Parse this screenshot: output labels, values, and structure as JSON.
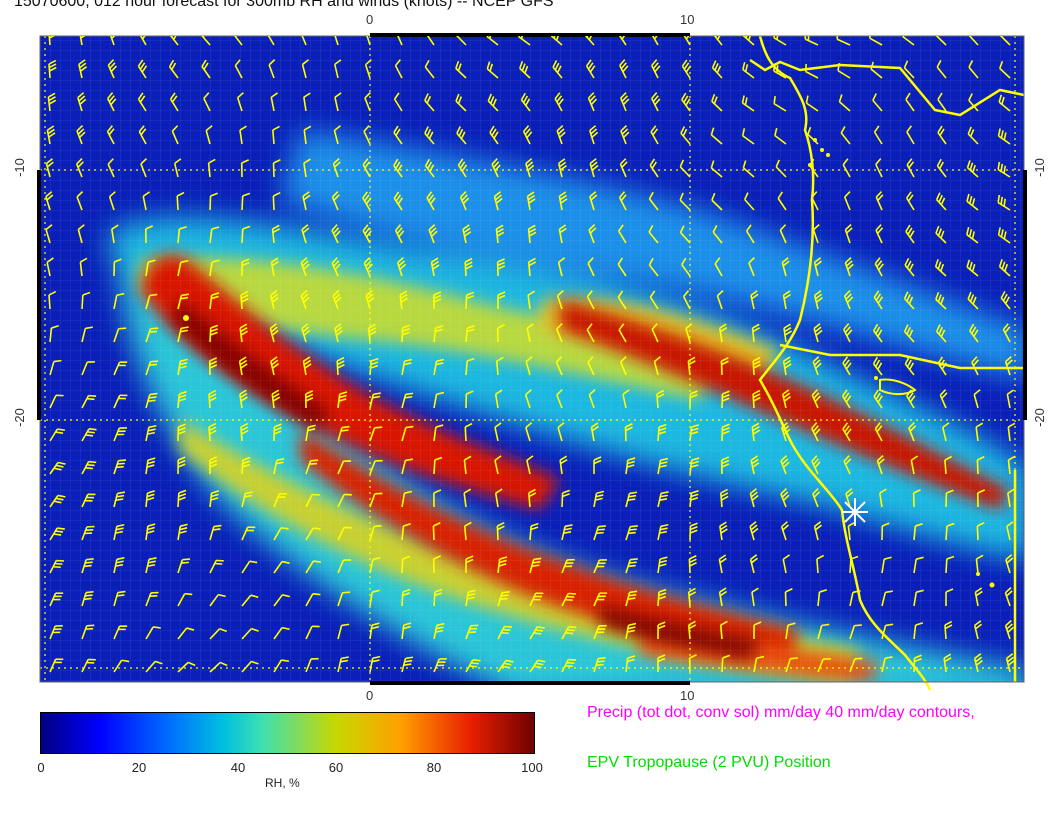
{
  "title": "15070600, 012 hour forecast for 300mb RH and winds (knots) -- NCEP GFS",
  "axes": {
    "top_ticks": [
      "0",
      "10"
    ],
    "bottom_ticks": [
      "0",
      "10"
    ],
    "left_ticks": [
      "-10",
      "-20"
    ],
    "right_ticks": [
      "-10",
      "-20"
    ]
  },
  "colorbar": {
    "ticks": [
      "0",
      "20",
      "40",
      "60",
      "80",
      "100"
    ],
    "label": "RH, %",
    "range": [
      0,
      100
    ]
  },
  "legends": {
    "precip": "Precip (tot dot, conv sol) mm/day 40 mm/day contours,",
    "epv": "EPV Tropopause (2 PVU) Position"
  },
  "colors": {
    "ocean_dry": "#0a1fb8",
    "moist_band": "#e02000",
    "wind_barbs": "#ffff00",
    "coastline": "#ffff00",
    "precip_text": "#ff00ff",
    "epv_text": "#00dd00"
  }
}
